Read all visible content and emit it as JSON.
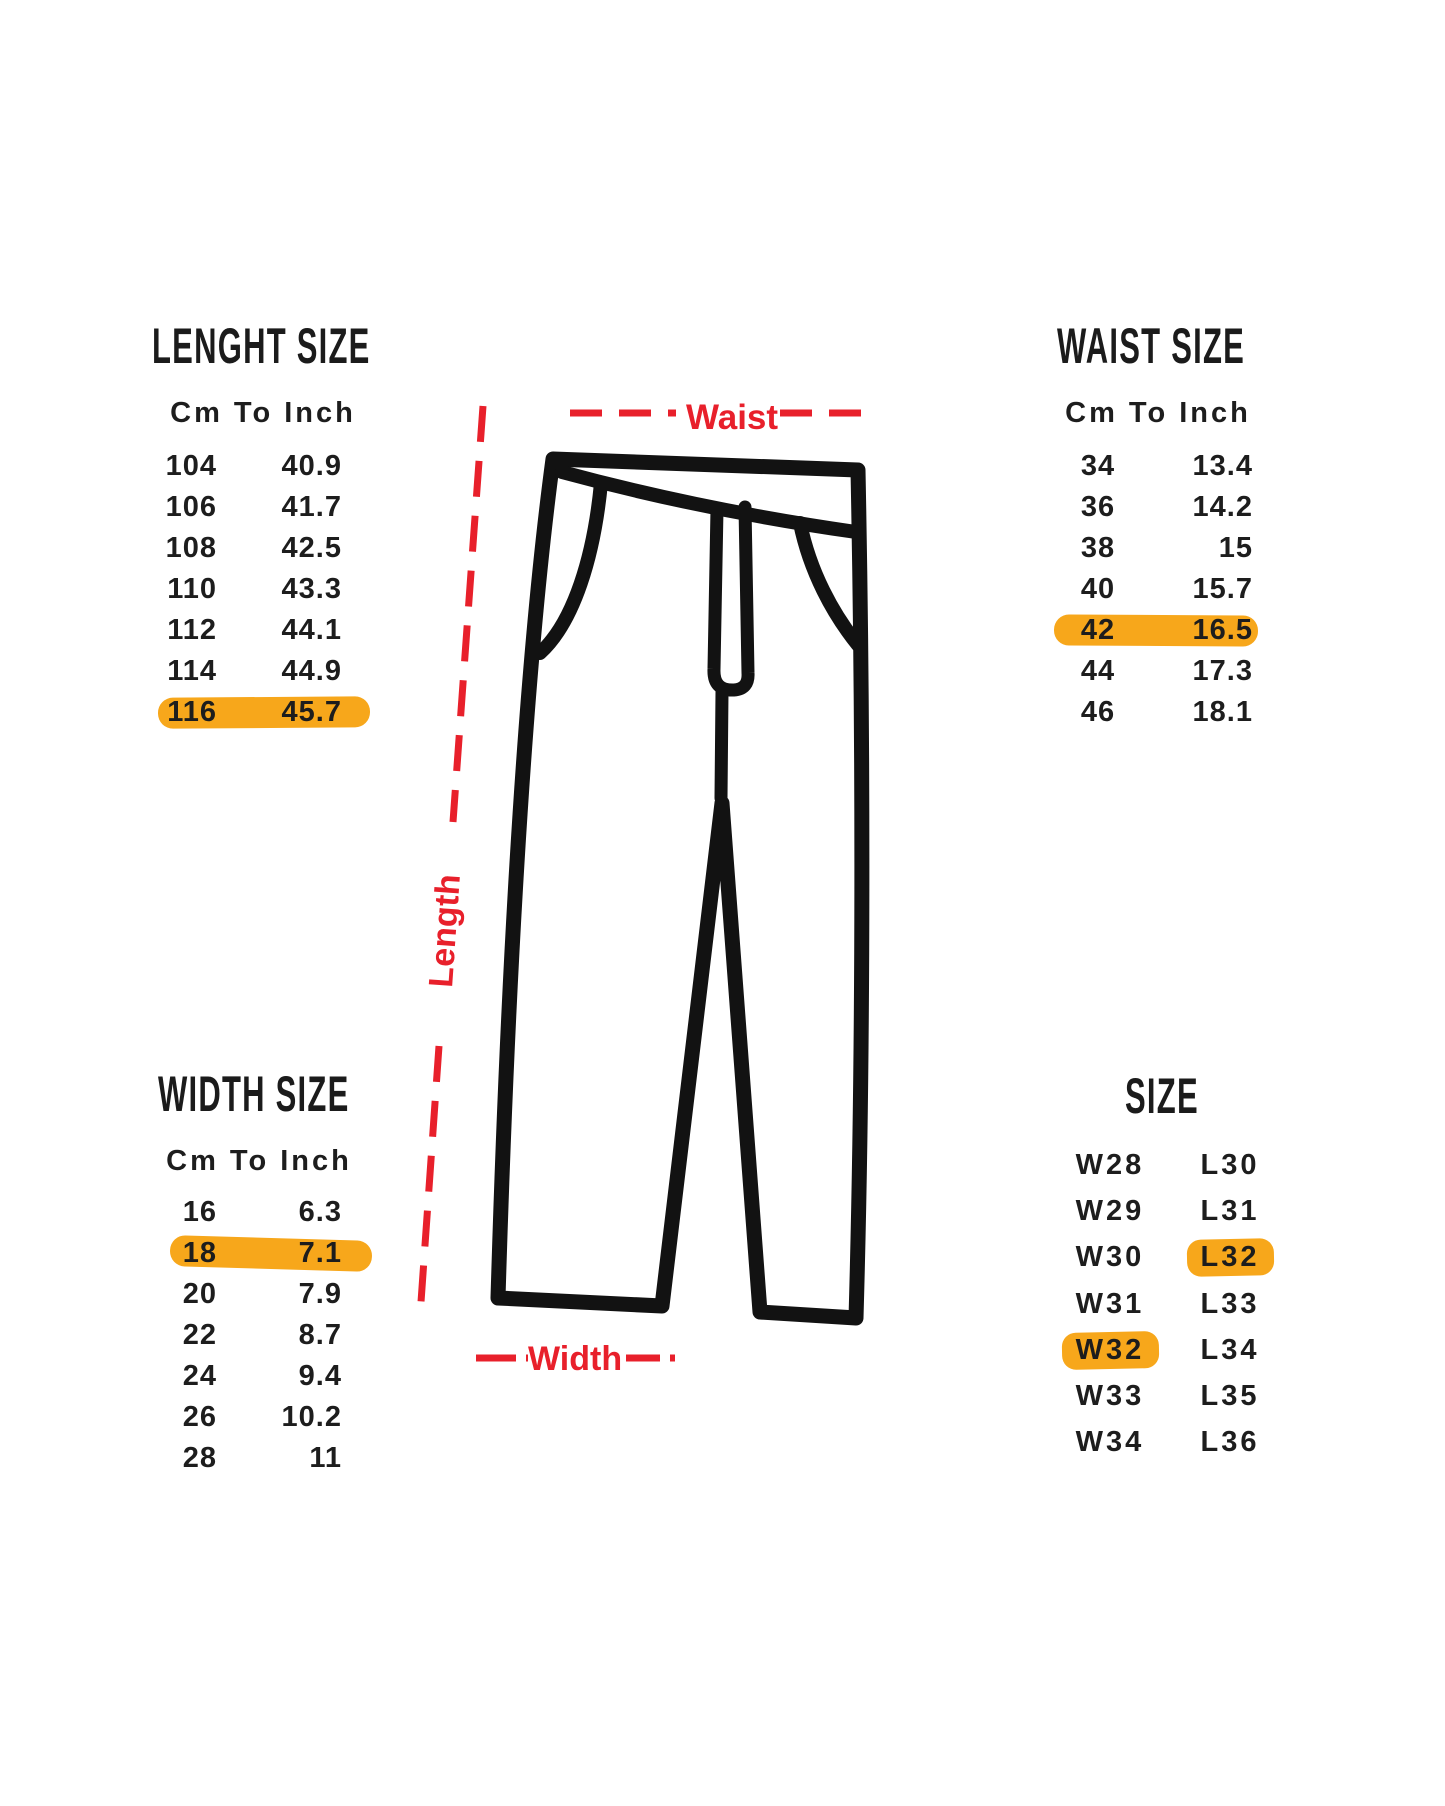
{
  "colors": {
    "highlight": "#f7a71b",
    "red": "#e8202b",
    "ink": "#1d1d1d"
  },
  "diagram_labels": {
    "waist": "Waist",
    "length": "Length",
    "width": "Width"
  },
  "length_table": {
    "title": "LENGHT SIZE",
    "header": "Cm To Inch",
    "rows": [
      {
        "cm": "104",
        "inch": "40.9"
      },
      {
        "cm": "106",
        "inch": "41.7"
      },
      {
        "cm": "108",
        "inch": "42.5"
      },
      {
        "cm": "110",
        "inch": "43.3"
      },
      {
        "cm": "112",
        "inch": "44.1"
      },
      {
        "cm": "114",
        "inch": "44.9"
      },
      {
        "cm": "116",
        "inch": "45.7",
        "hl": "row"
      }
    ]
  },
  "waist_table": {
    "title": "WAIST SIZE",
    "header": "Cm To Inch",
    "rows": [
      {
        "cm": "34",
        "inch": "13.4"
      },
      {
        "cm": "36",
        "inch": "14.2"
      },
      {
        "cm": "38",
        "inch": "15"
      },
      {
        "cm": "40",
        "inch": "15.7"
      },
      {
        "cm": "42",
        "inch": "16.5",
        "hl": "row"
      },
      {
        "cm": "44",
        "inch": "17.3"
      },
      {
        "cm": "46",
        "inch": "18.1"
      }
    ]
  },
  "width_table": {
    "title": "WIDTH SIZE",
    "header": "Cm To Inch",
    "rows": [
      {
        "cm": "16",
        "inch": "6.3"
      },
      {
        "cm": "18",
        "inch": "7.1",
        "hl": "row"
      },
      {
        "cm": "20",
        "inch": "7.9"
      },
      {
        "cm": "22",
        "inch": "8.7"
      },
      {
        "cm": "24",
        "inch": "9.4"
      },
      {
        "cm": "26",
        "inch": "10.2"
      },
      {
        "cm": "28",
        "inch": "11"
      }
    ]
  },
  "size_table": {
    "title": "SIZE",
    "rows": [
      {
        "w": "W28",
        "l": "L30"
      },
      {
        "w": "W29",
        "l": "L31"
      },
      {
        "w": "W30",
        "l": "L32",
        "hl": "l"
      },
      {
        "w": "W31",
        "l": "L33"
      },
      {
        "w": "W32",
        "l": "L34",
        "hl": "w"
      },
      {
        "w": "W33",
        "l": "L35"
      },
      {
        "w": "W34",
        "l": "L36"
      }
    ]
  }
}
